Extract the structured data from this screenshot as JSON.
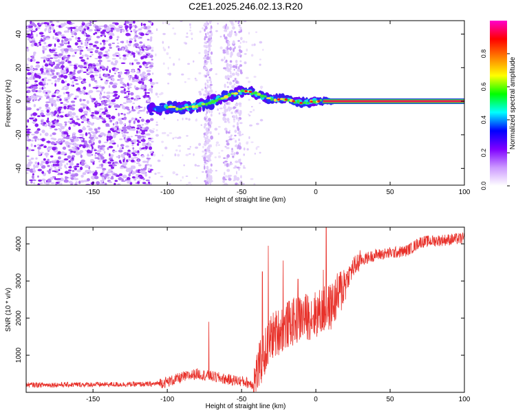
{
  "figure": {
    "title": "C2E1.2025.246.02.13.R20"
  },
  "colorbar": {
    "label": "Normalized spectral amplitude",
    "ticks": [
      0.0,
      0.2,
      0.4,
      0.6,
      0.8
    ],
    "range": [
      0,
      1
    ],
    "stops": [
      "#ffffff",
      "#cc99ff",
      "#7f00ff",
      "#0000ff",
      "#00ffff",
      "#00ff00",
      "#ffff00",
      "#ff8000",
      "#ff0000",
      "#ff00cc"
    ]
  },
  "chart_data": [
    {
      "type": "heatmap",
      "title": "",
      "xlabel": "Height of straight line (km)",
      "ylabel": "Frequency (Hz)",
      "xlim": [
        -195,
        100
      ],
      "ylim": [
        -50,
        48
      ],
      "xticks": [
        -150,
        -100,
        -50,
        0,
        50,
        100
      ],
      "yticks": [
        -40,
        -20,
        0,
        20,
        40
      ],
      "features": {
        "noise_region_km": [
          -195,
          -110
        ],
        "striations_km": [
          [
            -75,
            -70
          ],
          [
            -62,
            -50
          ]
        ],
        "doppler_trace": [
          {
            "x": -110,
            "y": -5
          },
          {
            "x": -100,
            "y": -4
          },
          {
            "x": -90,
            "y": -4
          },
          {
            "x": -80,
            "y": -3
          },
          {
            "x": -70,
            "y": 0
          },
          {
            "x": -60,
            "y": 3
          },
          {
            "x": -50,
            "y": 6
          },
          {
            "x": -45,
            "y": 6
          },
          {
            "x": -40,
            "y": 4
          },
          {
            "x": -30,
            "y": 1
          },
          {
            "x": -20,
            "y": 1
          },
          {
            "x": -10,
            "y": -1
          },
          {
            "x": 0,
            "y": 0
          },
          {
            "x": 10,
            "y": 0
          },
          {
            "x": 100,
            "y": 0
          }
        ]
      }
    },
    {
      "type": "line",
      "title": "",
      "xlabel": "Height of straight line (km)",
      "ylabel": "SNR (10 * v/v)",
      "xlim": [
        -195,
        100
      ],
      "ylim": [
        0,
        4450
      ],
      "xticks": [
        -150,
        -100,
        -50,
        0,
        50,
        100
      ],
      "yticks": [
        1000,
        2000,
        3000,
        4000
      ],
      "series": [
        {
          "name": "SNR",
          "color": "#e8312a",
          "trend": [
            {
              "x": -195,
              "y": 200
            },
            {
              "x": -110,
              "y": 220
            },
            {
              "x": -100,
              "y": 280
            },
            {
              "x": -90,
              "y": 400
            },
            {
              "x": -80,
              "y": 500
            },
            {
              "x": -70,
              "y": 430
            },
            {
              "x": -60,
              "y": 350
            },
            {
              "x": -50,
              "y": 300
            },
            {
              "x": -42,
              "y": 220
            },
            {
              "x": -38,
              "y": 700
            },
            {
              "x": -30,
              "y": 1500
            },
            {
              "x": -20,
              "y": 1800
            },
            {
              "x": -10,
              "y": 2000
            },
            {
              "x": 0,
              "y": 2100
            },
            {
              "x": 10,
              "y": 2300
            },
            {
              "x": 15,
              "y": 2600
            },
            {
              "x": 20,
              "y": 3000
            },
            {
              "x": 25,
              "y": 3350
            },
            {
              "x": 30,
              "y": 3550
            },
            {
              "x": 40,
              "y": 3700
            },
            {
              "x": 50,
              "y": 3750
            },
            {
              "x": 60,
              "y": 3800
            },
            {
              "x": 65,
              "y": 3900
            },
            {
              "x": 70,
              "y": 4050
            },
            {
              "x": 100,
              "y": 4150
            }
          ],
          "spikes": [
            {
              "x": -72,
              "y": 1900
            },
            {
              "x": -36,
              "y": 3250
            },
            {
              "x": -32,
              "y": 3950
            },
            {
              "x": -22,
              "y": 3550
            },
            {
              "x": -12,
              "y": 3050
            },
            {
              "x": 5,
              "y": 3300
            },
            {
              "x": 7,
              "y": 4450
            }
          ]
        }
      ]
    }
  ]
}
